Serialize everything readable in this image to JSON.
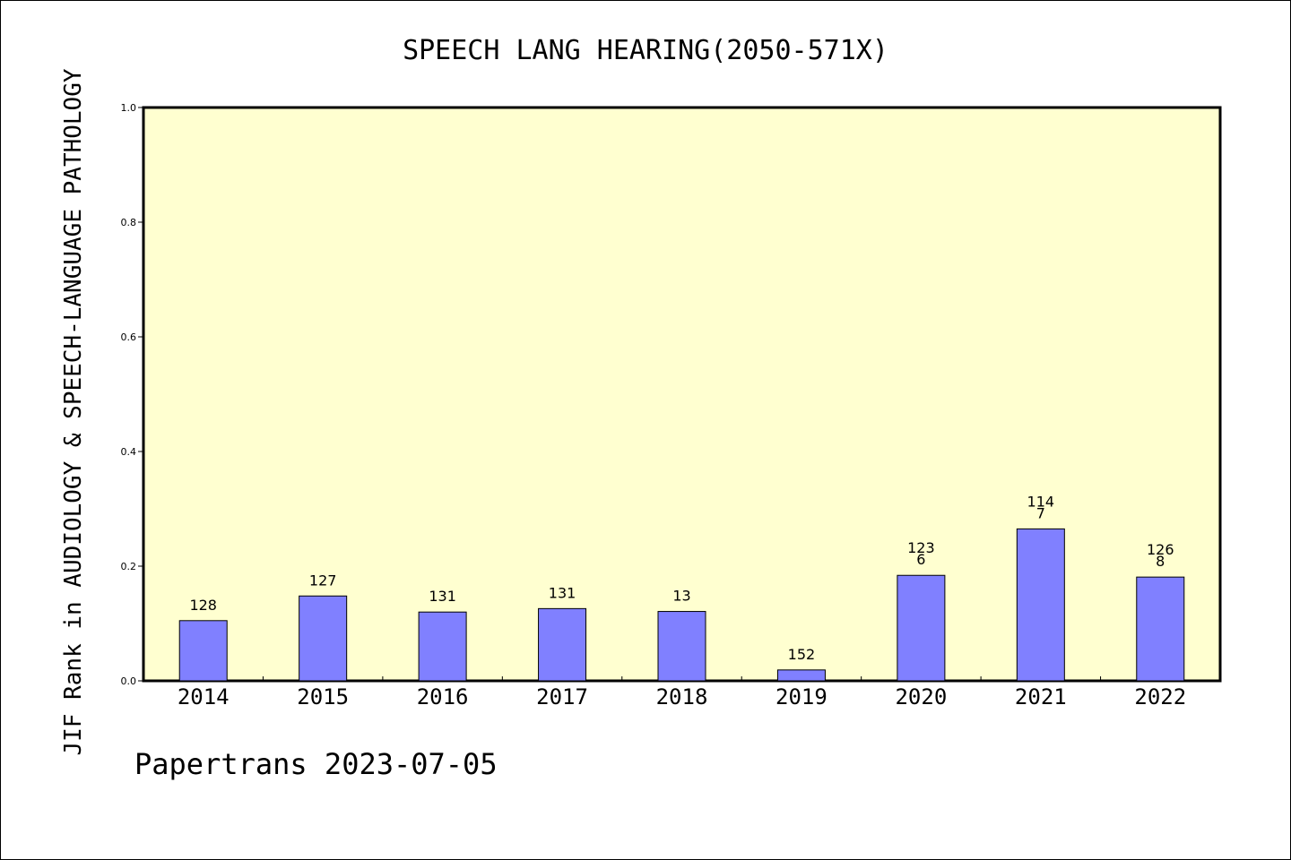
{
  "chart_data": {
    "type": "bar",
    "title": "SPEECH LANG HEARING(2050-571X)",
    "xlabel": "",
    "ylabel": "JIF Rank in AUDIOLOGY & SPEECH-LANGUAGE PATHOLOGY",
    "ylim": [
      0,
      1.0
    ],
    "yticks": [
      "0.0",
      "0.2",
      "0.4",
      "0.6",
      "0.8",
      "1.0"
    ],
    "grid": false,
    "categories": [
      "2014",
      "2015",
      "2016",
      "2017",
      "2018",
      "2019",
      "2020",
      "2021",
      "2022"
    ],
    "values": [
      0.105,
      0.148,
      0.12,
      0.126,
      0.121,
      0.019,
      0.184,
      0.265,
      0.181
    ],
    "data_labels": [
      [
        "128"
      ],
      [
        "127"
      ],
      [
        "131"
      ],
      [
        "131"
      ],
      [
        "13"
      ],
      [
        "152"
      ],
      [
        "123",
        "6"
      ],
      [
        "114",
        "7"
      ],
      [
        "126",
        "8"
      ]
    ],
    "colors": {
      "plot_background": "#ffffd0",
      "bar_fill": "#8080ff",
      "bar_stroke": "#000000"
    }
  },
  "footer": {
    "watermark": "Papertrans 2023-07-05"
  }
}
